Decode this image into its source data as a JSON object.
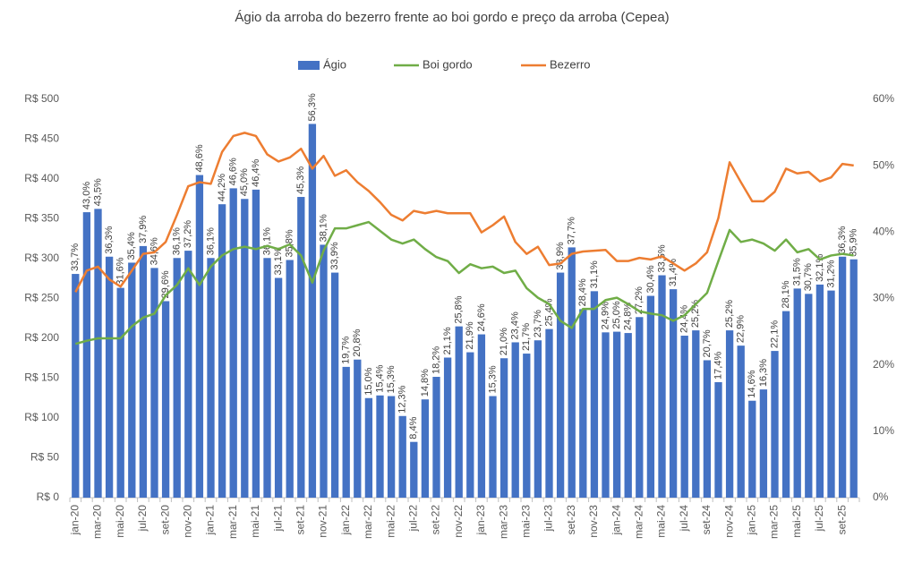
{
  "chart_data": {
    "type": "bar-line",
    "title": "Ágio da arroba do bezerro frente ao boi gordo e preço da arroba (Cepea)",
    "categories": [
      "jan-20",
      null,
      "mar-20",
      null,
      "mai-20",
      null,
      "jul-20",
      null,
      "set-20",
      null,
      "nov-20",
      null,
      "jan-21",
      null,
      "mar-21",
      null,
      "mai-21",
      null,
      "jul-21",
      null,
      "set-21",
      null,
      "nov-21",
      null,
      "jan-22",
      null,
      "mar-22",
      null,
      "mai-22",
      null,
      "jul-22",
      null,
      "set-22",
      null,
      "nov-22",
      null,
      "jan-23",
      null,
      "mar-23",
      null,
      "mai-23",
      null,
      "jul-23",
      null,
      "set-23",
      null,
      "nov-23",
      null,
      "jan-24",
      null,
      "mar-24",
      null,
      "mai-24",
      null,
      "jul-24",
      null,
      "set-24",
      null,
      "nov-24",
      null,
      "jan-25",
      null,
      "mar-25",
      null,
      "mai-25",
      null,
      "jul-25",
      null,
      "set-25",
      null
    ],
    "series": [
      {
        "name": "Ágio",
        "type": "bar",
        "axis": "y2",
        "color": "#4472c4",
        "values": [
          33.7,
          43.0,
          43.5,
          36.3,
          31.6,
          35.4,
          37.9,
          34.6,
          29.6,
          36.1,
          37.2,
          48.6,
          36.1,
          44.2,
          46.6,
          45.0,
          46.4,
          36.1,
          33.1,
          35.8,
          45.3,
          56.3,
          38.1,
          33.9,
          19.7,
          20.8,
          15.0,
          15.4,
          15.3,
          12.3,
          8.4,
          14.8,
          18.2,
          21.1,
          25.8,
          21.9,
          24.6,
          15.3,
          21.0,
          23.4,
          21.7,
          23.7,
          25.4,
          33.9,
          37.7,
          28.4,
          31.1,
          24.9,
          25.0,
          24.8,
          27.2,
          30.4,
          33.5,
          31.4,
          24.4,
          25.2,
          20.7,
          17.4,
          25.2,
          22.9,
          14.6,
          16.3,
          22.1,
          28.1,
          31.5,
          30.7,
          32.1,
          31.2,
          36.3,
          35.9
        ],
        "value_labels": [
          "33,7%",
          "43,0%",
          "43,5%",
          "36,3%",
          "31,6%",
          "35,4%",
          "37,9%",
          "34,6%",
          "29,6%",
          "36,1%",
          "37,2%",
          "48,6%",
          "36,1%",
          "44,2%",
          "46,6%",
          "45,0%",
          "46,4%",
          "36,1%",
          "33,1%",
          "35,8%",
          "45,3%",
          "56,3%",
          "38,1%",
          "33,9%",
          "19,7%",
          "20,8%",
          "15,0%",
          "15,4%",
          "15,3%",
          "12,3%",
          "8,4%",
          "14,8%",
          "18,2%",
          "21,1%",
          "25,8%",
          "21,9%",
          "24,6%",
          "15,3%",
          "21,0%",
          "23,4%",
          "21,7%",
          "23,7%",
          "25,4%",
          "33,9%",
          "37,7%",
          "28,4%",
          "31,1%",
          "24,9%",
          "25,0%",
          "24,8%",
          "27,2%",
          "30,4%",
          "33,5%",
          "31,4%",
          "24,4%",
          "25,2%",
          "20,7%",
          "17,4%",
          "25,2%",
          "22,9%",
          "14,6%",
          "16,3%",
          "22,1%",
          "28,1%",
          "31,5%",
          "30,7%",
          "32,1%",
          "31,2%",
          "36,3%",
          "35,9%"
        ]
      },
      {
        "name": "Boi gordo",
        "type": "line",
        "color": "#70ad47",
        "values": [
          193,
          197,
          200,
          200,
          200,
          215,
          226,
          231,
          254,
          267,
          288,
          267,
          290,
          304,
          312,
          315,
          312,
          316,
          312,
          318,
          304,
          270,
          310,
          338,
          338,
          342,
          346,
          335,
          324,
          319,
          324,
          312,
          302,
          297,
          282,
          293,
          288,
          290,
          282,
          285,
          263,
          251,
          243,
          222,
          213,
          237,
          237,
          248,
          251,
          243,
          234,
          231,
          229,
          222,
          229,
          243,
          257,
          297,
          336,
          321,
          324,
          319,
          310,
          324,
          308,
          312,
          299,
          304,
          306,
          304
        ]
      },
      {
        "name": "Bezerro",
        "type": "line",
        "color": "#ed7d31",
        "values": [
          258,
          285,
          290,
          274,
          265,
          285,
          306,
          308,
          321,
          355,
          391,
          396,
          394,
          434,
          454,
          458,
          454,
          431,
          422,
          427,
          438,
          413,
          429,
          404,
          411,
          396,
          385,
          371,
          355,
          348,
          360,
          357,
          360,
          357,
          357,
          357,
          333,
          342,
          353,
          321,
          306,
          315,
          292,
          294,
          306,
          309,
          310,
          311,
          297,
          297,
          301,
          299,
          303,
          294,
          285,
          294,
          308,
          351,
          421,
          396,
          372,
          372,
          384,
          413,
          407,
          409,
          397,
          402,
          419,
          417
        ]
      }
    ],
    "ylim": [
      0,
      500
    ],
    "yticks": [
      {
        "value": 0,
        "label": "R$ 0"
      },
      {
        "value": 50,
        "label": "R$ 50"
      },
      {
        "value": 100,
        "label": "R$ 100"
      },
      {
        "value": 150,
        "label": "R$ 150"
      },
      {
        "value": 200,
        "label": "R$ 200"
      },
      {
        "value": 250,
        "label": "R$ 250"
      },
      {
        "value": 300,
        "label": "R$ 300"
      },
      {
        "value": 350,
        "label": "R$ 350"
      },
      {
        "value": 400,
        "label": "R$ 400"
      },
      {
        "value": 450,
        "label": "R$ 450"
      },
      {
        "value": 500,
        "label": "R$ 500"
      }
    ],
    "y2lim": [
      0,
      60
    ],
    "y2ticks": [
      {
        "value": 0,
        "label": "0%"
      },
      {
        "value": 10,
        "label": "10%"
      },
      {
        "value": 20,
        "label": "20%"
      },
      {
        "value": 30,
        "label": "30%"
      },
      {
        "value": 40,
        "label": "40%"
      },
      {
        "value": 50,
        "label": "50%"
      },
      {
        "value": 60,
        "label": "60%"
      }
    ],
    "legend": "top"
  }
}
